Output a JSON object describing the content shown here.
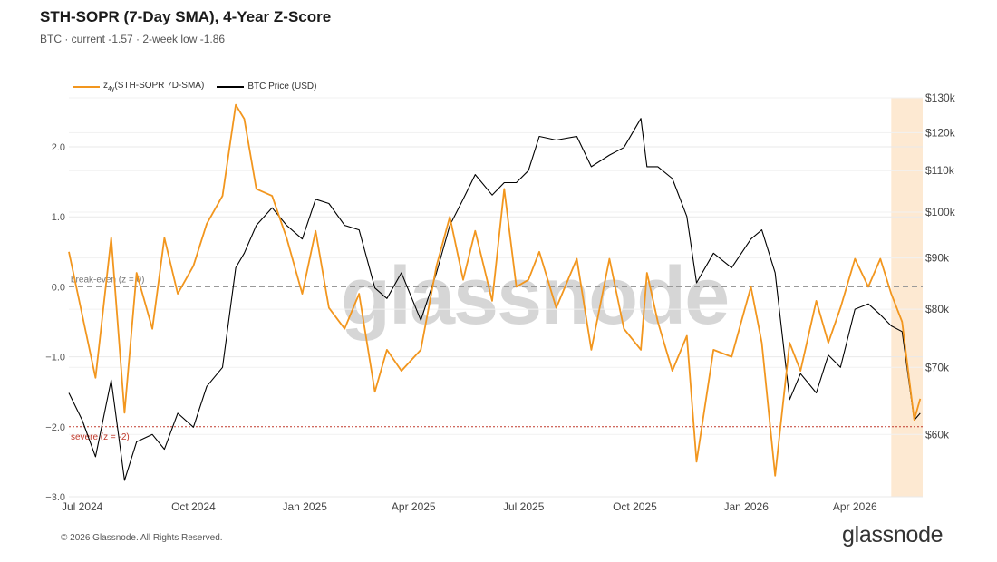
{
  "header": {
    "title": "STH-SOPR (7-Day SMA), 4-Year Z-Score",
    "subtitle": "BTC · current -1.57 · 2-week low -1.86"
  },
  "legend": {
    "z_prefix": "z",
    "z_sub": "4y",
    "z_label": "(STH-SOPR 7D-SMA)",
    "price_label": "BTC Price (USD)"
  },
  "footer": {
    "copyright": "© 2026 Glassnode. All Rights Reserved.",
    "logo": "glassnode",
    "watermark": "glassnode"
  },
  "colors": {
    "zscore": "#f2961e",
    "price": "#000000",
    "breakeven_line": "#9a9a9a",
    "severe_line": "#c0392b",
    "severe_text": "#c0392b",
    "highlight": "#fde9d2",
    "grid": "#e9e9e9"
  },
  "chart_data": {
    "type": "line",
    "title": "STH-SOPR (7-Day SMA), 4-Year Z-Score",
    "x": [
      "2024-06-20",
      "2024-07-01",
      "2024-07-12",
      "2024-07-25",
      "2024-08-05",
      "2024-08-15",
      "2024-08-28",
      "2024-09-07",
      "2024-09-18",
      "2024-10-01",
      "2024-10-12",
      "2024-10-25",
      "2024-11-05",
      "2024-11-12",
      "2024-11-22",
      "2024-12-05",
      "2024-12-17",
      "2024-12-30",
      "2025-01-10",
      "2025-01-21",
      "2025-02-03",
      "2025-02-15",
      "2025-02-28",
      "2025-03-10",
      "2025-03-22",
      "2025-04-07",
      "2025-04-20",
      "2025-05-01",
      "2025-05-12",
      "2025-05-22",
      "2025-06-05",
      "2025-06-15",
      "2025-06-25",
      "2025-07-05",
      "2025-07-14",
      "2025-07-28",
      "2025-08-14",
      "2025-08-26",
      "2025-09-10",
      "2025-09-22",
      "2025-10-06",
      "2025-10-11",
      "2025-10-20",
      "2025-11-01",
      "2025-11-13",
      "2025-11-21",
      "2025-12-05",
      "2025-12-20",
      "2026-01-05",
      "2026-01-14",
      "2026-01-25",
      "2026-02-06",
      "2026-02-15",
      "2026-02-28",
      "2026-03-10",
      "2026-03-20",
      "2026-04-01",
      "2026-04-12",
      "2026-04-22",
      "2026-05-01",
      "2026-05-10",
      "2026-05-20",
      "2026-05-25"
    ],
    "series": [
      {
        "name": "z4y(STH-SOPR 7D-SMA)",
        "axis": "left",
        "values": [
          0.5,
          -0.4,
          -1.3,
          0.7,
          -1.8,
          0.2,
          -0.6,
          0.7,
          -0.1,
          0.3,
          0.9,
          1.3,
          2.6,
          2.4,
          1.4,
          1.3,
          0.7,
          -0.1,
          0.8,
          -0.3,
          -0.6,
          -0.1,
          -1.5,
          -0.9,
          -1.2,
          -0.9,
          0.3,
          1.0,
          0.1,
          0.8,
          -0.2,
          1.4,
          0.0,
          0.1,
          0.5,
          -0.3,
          0.4,
          -0.9,
          0.4,
          -0.6,
          -0.9,
          0.2,
          -0.5,
          -1.2,
          -0.7,
          -2.5,
          -0.9,
          -1.0,
          0.0,
          -0.8,
          -2.7,
          -0.8,
          -1.2,
          -0.2,
          -0.8,
          -0.3,
          0.4,
          0.0,
          0.4,
          -0.1,
          -0.5,
          -1.9,
          -1.6
        ]
      },
      {
        "name": "BTC Price (USD)",
        "axis": "right",
        "values": [
          66000,
          62000,
          57000,
          68000,
          54000,
          59000,
          60000,
          58000,
          63000,
          61000,
          67000,
          70000,
          88000,
          91000,
          97000,
          101000,
          97000,
          94000,
          103000,
          102000,
          97000,
          96000,
          84000,
          82000,
          87000,
          78000,
          87000,
          97000,
          103000,
          109000,
          104000,
          107000,
          107000,
          110000,
          119000,
          118000,
          119000,
          111000,
          114000,
          116000,
          124000,
          111000,
          111000,
          108000,
          99000,
          85000,
          91000,
          88000,
          94000,
          96000,
          87000,
          65000,
          69000,
          66000,
          72000,
          70000,
          80000,
          81000,
          79000,
          77000,
          76000,
          62000,
          63000
        ]
      }
    ],
    "x_ticks": [
      "Jul 2024",
      "Oct 2024",
      "Jan 2025",
      "Apr 2025",
      "Jul 2025",
      "Oct 2025",
      "Jan 2026",
      "Apr 2026"
    ],
    "y_left": {
      "range": [
        -3.0,
        2.7
      ],
      "ticks": [
        "2.0",
        "1.0",
        "0.0",
        "−1.0",
        "−2.0",
        "−3.0"
      ],
      "tick_values": [
        2,
        1,
        0,
        -1,
        -2,
        -3
      ]
    },
    "y_right": {
      "scale": "log",
      "range": [
        52000,
        130000
      ],
      "ticks": [
        "$130k",
        "$120k",
        "$110k",
        "$100k",
        "$90k",
        "$80k",
        "$70k",
        "$60k"
      ],
      "tick_values": [
        130000,
        120000,
        110000,
        100000,
        90000,
        80000,
        70000,
        60000
      ]
    },
    "reference_lines": [
      {
        "value": 0,
        "label": "break-even (z = 0)",
        "style": "dashed"
      },
      {
        "value": -2,
        "label": "severe (z = -2)",
        "style": "dotted"
      }
    ],
    "highlight_from": "2026-05-01",
    "grid": true,
    "legend_position": "top-left"
  }
}
